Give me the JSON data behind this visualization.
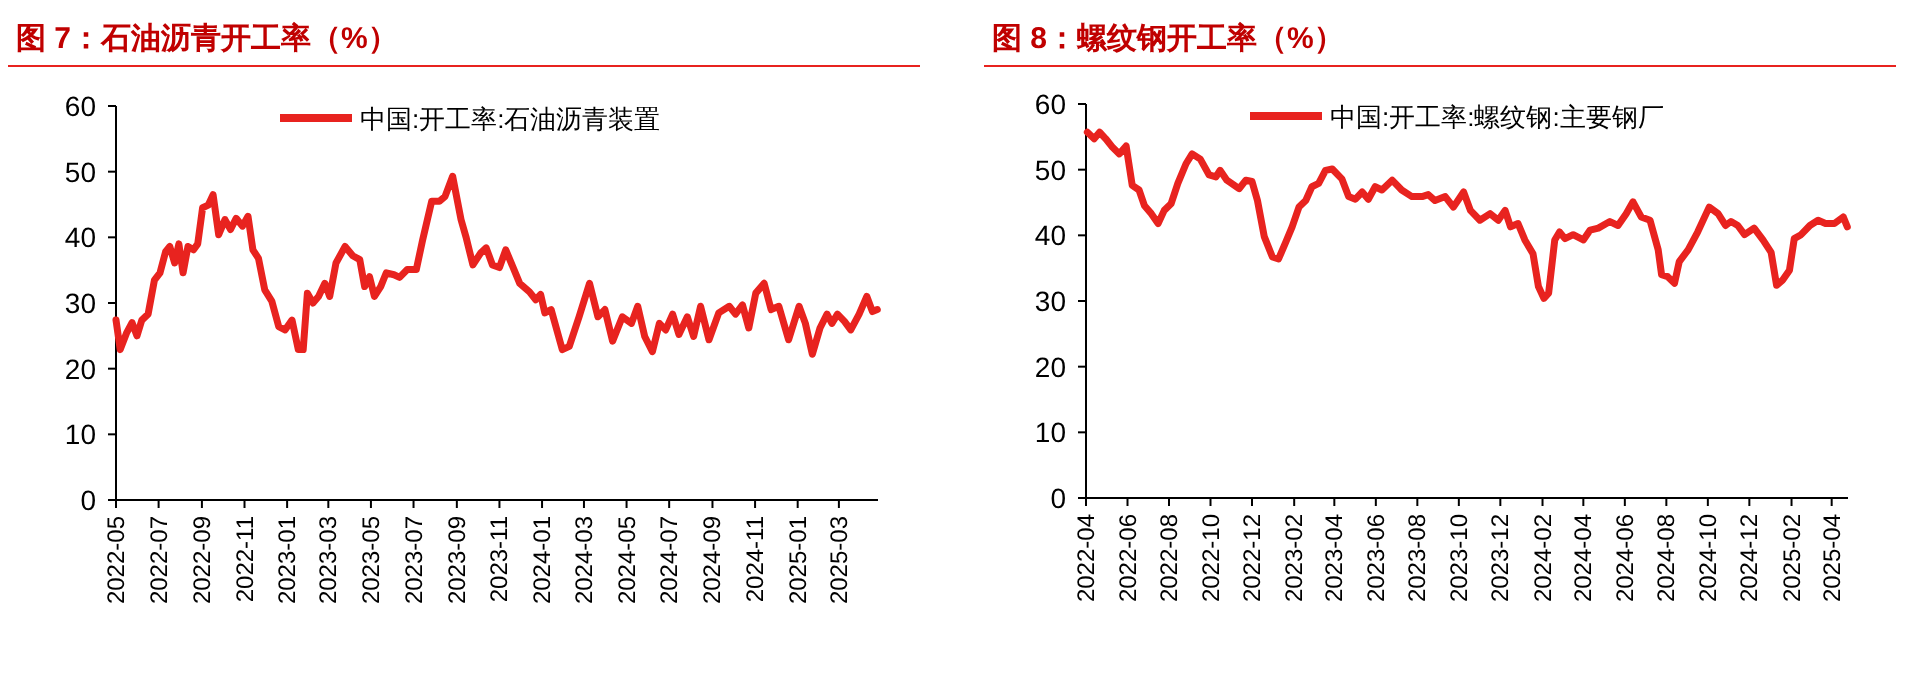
{
  "chart_data": [
    {
      "type": "line",
      "title": "图 7：石油沥青开工率（%）",
      "legend": "top",
      "grid": false,
      "marker": "none",
      "line_style": "solid",
      "xlim": [
        "2022-05-01",
        "2025-04-26"
      ],
      "ylim": [
        0,
        60
      ],
      "yticks": [
        0,
        10,
        20,
        30,
        40,
        50,
        60
      ],
      "xticks": [
        "2022-05",
        "2022-07",
        "2022-09",
        "2022-11",
        "2023-01",
        "2023-03",
        "2023-05",
        "2023-07",
        "2023-09",
        "2023-11",
        "2024-01",
        "2024-03",
        "2024-05",
        "2024-07",
        "2024-09",
        "2024-11",
        "2025-01",
        "2025-03"
      ],
      "series": [
        {
          "name": "中国:开工率:石油沥青装置",
          "color": "#e8231f",
          "x": [
            "2022-05-01",
            "2022-05-07",
            "2022-05-16",
            "2022-05-24",
            "2022-05-31",
            "2022-06-07",
            "2022-06-16",
            "2022-06-25",
            "2022-07-03",
            "2022-07-11",
            "2022-07-17",
            "2022-07-24",
            "2022-07-30",
            "2022-08-05",
            "2022-08-12",
            "2022-08-20",
            "2022-08-26",
            "2022-09-02",
            "2022-09-10",
            "2022-09-17",
            "2022-09-25",
            "2022-10-04",
            "2022-10-12",
            "2022-10-20",
            "2022-10-29",
            "2022-11-06",
            "2022-11-13",
            "2022-11-21",
            "2022-11-30",
            "2022-12-10",
            "2022-12-20",
            "2022-12-29",
            "2023-01-08",
            "2023-01-17",
            "2023-01-24",
            "2023-01-30",
            "2023-02-07",
            "2023-02-15",
            "2023-02-24",
            "2023-03-03",
            "2023-03-12",
            "2023-03-25",
            "2023-04-05",
            "2023-04-15",
            "2023-04-22",
            "2023-04-29",
            "2023-05-06",
            "2023-05-15",
            "2023-05-23",
            "2023-06-03",
            "2023-06-11",
            "2023-06-22",
            "2023-07-05",
            "2023-07-14",
            "2023-07-27",
            "2023-08-07",
            "2023-08-15",
            "2023-08-26",
            "2023-09-07",
            "2023-09-14",
            "2023-09-24",
            "2023-10-05",
            "2023-10-13",
            "2023-10-22",
            "2023-11-01",
            "2023-11-10",
            "2023-11-30",
            "2023-12-14",
            "2023-12-23",
            "2023-12-30",
            "2024-01-05",
            "2024-01-14",
            "2024-01-30",
            "2024-02-09",
            "2024-02-23",
            "2024-03-09",
            "2024-03-21",
            "2024-03-31",
            "2024-04-11",
            "2024-04-25",
            "2024-05-08",
            "2024-05-17",
            "2024-05-27",
            "2024-06-07",
            "2024-06-17",
            "2024-06-26",
            "2024-07-06",
            "2024-07-15",
            "2024-07-27",
            "2024-08-05",
            "2024-08-15",
            "2024-08-27",
            "2024-09-10",
            "2024-09-25",
            "2024-10-04",
            "2024-10-14",
            "2024-10-23",
            "2024-11-02",
            "2024-11-14",
            "2024-11-24",
            "2024-12-05",
            "2024-12-19",
            "2025-01-03",
            "2025-01-12",
            "2025-01-22",
            "2025-02-02",
            "2025-02-12",
            "2025-02-19",
            "2025-02-27",
            "2025-03-09",
            "2025-03-18",
            "2025-03-30",
            "2025-04-10",
            "2025-04-18",
            "2025-04-25"
          ],
          "values": [
            27.4,
            22.9,
            25.4,
            27,
            25,
            27.4,
            28.3,
            33.5,
            34.6,
            37.8,
            38.6,
            36.1,
            39,
            34.6,
            38.6,
            38.1,
            39,
            44.5,
            44.9,
            46.5,
            40.4,
            42.7,
            41.2,
            42.9,
            41.7,
            43.2,
            38.1,
            36.8,
            32,
            30.3,
            26.4,
            25.9,
            27.4,
            22.9,
            22.9,
            31.5,
            30,
            31,
            33,
            31,
            36.1,
            38.6,
            37.2,
            36.6,
            32.5,
            34,
            31,
            32.5,
            34.6,
            34.3,
            33.9,
            35.1,
            35.1,
            39.6,
            45.5,
            45.5,
            46.2,
            49.3,
            42.7,
            40.1,
            35.8,
            37.6,
            38.4,
            35.8,
            35.4,
            38.1,
            33,
            31.7,
            30.5,
            31.3,
            28.5,
            29,
            22.9,
            23.4,
            27.9,
            33,
            27.9,
            29,
            24.2,
            27.9,
            26.9,
            29.5,
            24.9,
            22.6,
            26.9,
            25.9,
            28.3,
            25.2,
            27.9,
            24.9,
            29.5,
            24.4,
            28.5,
            29.5,
            28.3,
            29.7,
            26.2,
            31.5,
            33,
            29,
            29.5,
            24.4,
            29.5,
            26.9,
            22.2,
            26.2,
            28.3,
            26.9,
            28.3,
            27.2,
            25.9,
            28.3,
            31,
            28.7,
            29
          ]
        }
      ]
    },
    {
      "type": "line",
      "title": "图 8：螺纹钢开工率（%）",
      "legend": "top",
      "grid": false,
      "marker": "none",
      "line_style": "solid",
      "xlim": [
        "2022-04-01",
        "2025-04-25"
      ],
      "ylim": [
        0,
        60
      ],
      "yticks": [
        0,
        10,
        20,
        30,
        40,
        50,
        60
      ],
      "xticks": [
        "2022-04",
        "2022-06",
        "2022-08",
        "2022-10",
        "2022-12",
        "2023-02",
        "2023-04",
        "2023-06",
        "2023-08",
        "2023-10",
        "2023-12",
        "2024-02",
        "2024-04",
        "2024-06",
        "2024-08",
        "2024-10",
        "2024-12",
        "2025-02",
        "2025-04"
      ],
      "series": [
        {
          "name": "中国:开工率:螺纹钢:主要钢厂",
          "color": "#e8231f",
          "x": [
            "2022-04-03",
            "2022-04-13",
            "2022-04-21",
            "2022-04-30",
            "2022-05-10",
            "2022-05-20",
            "2022-05-30",
            "2022-06-08",
            "2022-06-18",
            "2022-06-26",
            "2022-07-06",
            "2022-07-16",
            "2022-07-25",
            "2022-08-04",
            "2022-08-14",
            "2022-08-26",
            "2022-09-04",
            "2022-09-16",
            "2022-09-29",
            "2022-10-09",
            "2022-10-15",
            "2022-10-25",
            "2022-11-12",
            "2022-11-22",
            "2022-12-01",
            "2022-12-09",
            "2022-12-19",
            "2022-12-31",
            "2023-01-09",
            "2023-01-19",
            "2023-01-29",
            "2023-02-08",
            "2023-02-18",
            "2023-02-27",
            "2023-03-09",
            "2023-03-19",
            "2023-03-29",
            "2023-04-12",
            "2023-04-22",
            "2023-05-02",
            "2023-05-12",
            "2023-05-21",
            "2023-05-31",
            "2023-06-10",
            "2023-06-25",
            "2023-07-09",
            "2023-07-24",
            "2023-08-08",
            "2023-08-17",
            "2023-08-27",
            "2023-09-11",
            "2023-09-23",
            "2023-10-08",
            "2023-10-18",
            "2023-11-01",
            "2023-11-16",
            "2023-11-28",
            "2023-12-08",
            "2023-12-16",
            "2023-12-27",
            "2024-01-06",
            "2024-01-18",
            "2024-01-26",
            "2024-02-03",
            "2024-02-10",
            "2024-02-19",
            "2024-02-26",
            "2024-03-05",
            "2024-03-17",
            "2024-04-01",
            "2024-04-11",
            "2024-04-23",
            "2024-05-10",
            "2024-05-22",
            "2024-06-03",
            "2024-06-13",
            "2024-06-25",
            "2024-07-08",
            "2024-07-20",
            "2024-07-25",
            "2024-08-03",
            "2024-08-13",
            "2024-08-20",
            "2024-09-02",
            "2024-09-16",
            "2024-10-03",
            "2024-10-16",
            "2024-10-27",
            "2024-11-04",
            "2024-11-14",
            "2024-11-24",
            "2024-12-08",
            "2024-12-21",
            "2025-01-02",
            "2025-01-10",
            "2025-01-19",
            "2025-01-29",
            "2025-02-05",
            "2025-02-15",
            "2025-02-28",
            "2025-03-12",
            "2025-03-23",
            "2025-04-05",
            "2025-04-18",
            "2025-04-24"
          ],
          "values": [
            55.7,
            54.7,
            55.7,
            54.7,
            53.4,
            52.4,
            53.6,
            47.6,
            46.9,
            44.5,
            43.3,
            41.8,
            43.8,
            44.8,
            47.9,
            50.9,
            52.4,
            51.6,
            49.2,
            48.9,
            49.9,
            48.4,
            47.1,
            48.4,
            48.2,
            45.3,
            39.8,
            36.7,
            36.4,
            38.8,
            41.3,
            44.3,
            45.3,
            47.4,
            47.9,
            49.9,
            50.1,
            48.6,
            45.9,
            45.5,
            46.6,
            45.5,
            47.4,
            46.9,
            48.4,
            46.9,
            45.9,
            45.9,
            46.2,
            45.3,
            45.9,
            44.3,
            46.6,
            43.8,
            42.3,
            43.3,
            42.3,
            43.8,
            41.3,
            41.8,
            39.3,
            37.2,
            32.2,
            30.4,
            31.2,
            39.3,
            40.5,
            39.5,
            40.1,
            39.3,
            40.8,
            41.1,
            42.1,
            41.5,
            43.3,
            45.1,
            42.8,
            42.3,
            37.8,
            34,
            33.7,
            32.7,
            36,
            37.8,
            40.5,
            44.3,
            43.3,
            41.5,
            42.1,
            41.5,
            40.1,
            41.1,
            39.3,
            37.4,
            32.4,
            33.2,
            34.7,
            39.5,
            40.1,
            41.5,
            42.3,
            41.8,
            41.8,
            42.8,
            41.3
          ]
        }
      ]
    }
  ]
}
